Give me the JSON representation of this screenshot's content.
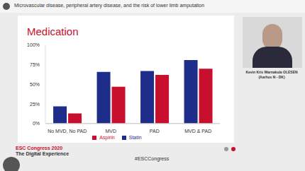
{
  "header": "Microvascular disease, peripheral artery disease, and the risk of lower limb amputation",
  "speaker": {
    "name": "Kevin Kris Warnakula OLESEN",
    "affiliation": "(Aarhus N - DK)"
  },
  "footer": {
    "event": "ESC Congress 2020",
    "subtitle": "The Digital Experience",
    "hashtag": "#ESCCongress"
  },
  "chart_data": {
    "type": "bar",
    "title": "Medication",
    "categories": [
      "No MVD, No PAD",
      "MVD",
      "PAD",
      "MVD & PAD"
    ],
    "series": [
      {
        "name": "Statin",
        "color": "#1f2d8a",
        "values": [
          22,
          66,
          67,
          81
        ]
      },
      {
        "name": "Aspirin",
        "color": "#c8102e",
        "values": [
          13,
          47,
          62,
          70
        ]
      }
    ],
    "ylim": [
      0,
      100
    ],
    "yticks": [
      {
        "value": 0,
        "label": "0%"
      },
      {
        "value": 25,
        "label": "25%"
      },
      {
        "value": 50,
        "label": "50%"
      },
      {
        "value": 75,
        "label": "75%"
      },
      {
        "value": 100,
        "label": "100%"
      }
    ],
    "grid": false,
    "legend": "bottom"
  }
}
